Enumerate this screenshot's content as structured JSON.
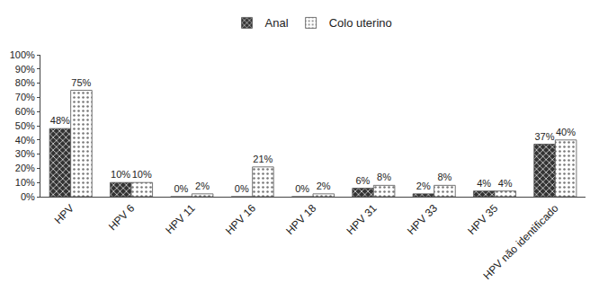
{
  "chart_data": {
    "type": "bar",
    "categories": [
      "HPV",
      "HPV 6",
      "HPV 11",
      "HPV 16",
      "HPV 18",
      "HPV 31",
      "HPV 33",
      "HPV 35",
      "HPV não identificado"
    ],
    "series": [
      {
        "name": "Anal",
        "color": "#333333",
        "values": [
          48,
          10,
          0,
          0,
          0,
          6,
          2,
          4,
          37
        ],
        "value_labels": [
          "48%",
          "10%",
          "0%",
          "0%",
          "0%",
          "6%",
          "2%",
          "4%",
          "37%"
        ]
      },
      {
        "name": "Colo uterino",
        "color": "#ffffff",
        "values": [
          75,
          10,
          2,
          21,
          2,
          8,
          8,
          4,
          40
        ],
        "value_labels": [
          "75%",
          "10%",
          "2%",
          "21%",
          "2%",
          "8%",
          "8%",
          "4%",
          "40%"
        ]
      }
    ],
    "ylim": [
      0,
      100
    ],
    "yticks": [
      {
        "value": 0,
        "label": "0%"
      },
      {
        "value": 10,
        "label": "10%"
      },
      {
        "value": 20,
        "label": "20%"
      },
      {
        "value": 30,
        "label": "30%"
      },
      {
        "value": 40,
        "label": "40%"
      },
      {
        "value": 50,
        "label": "50%"
      },
      {
        "value": 60,
        "label": "60%"
      },
      {
        "value": 70,
        "label": "70%"
      },
      {
        "value": 80,
        "label": "80%"
      },
      {
        "value": 90,
        "label": "90%"
      },
      {
        "value": 100,
        "label": "100%"
      }
    ],
    "grid": false,
    "legend": "top",
    "data_labels": true
  }
}
